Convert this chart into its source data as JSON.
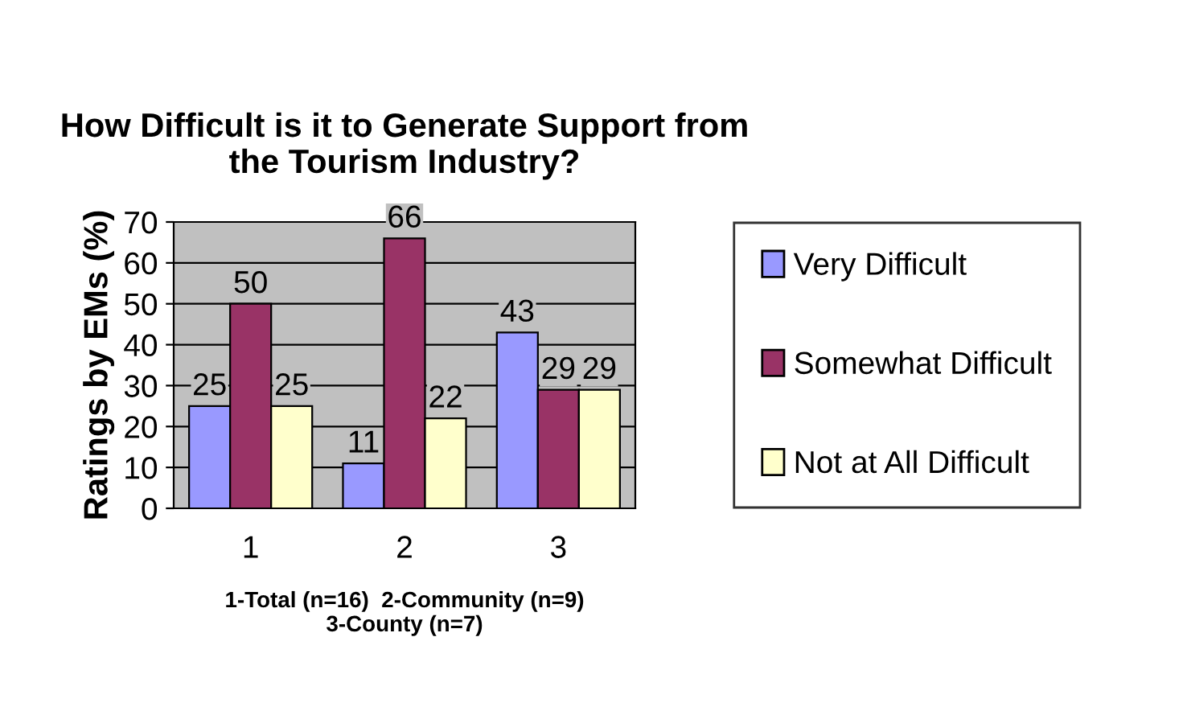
{
  "chart_data": {
    "type": "bar",
    "title": "How Difficult is it to Generate Support from\nthe Tourism Industry?",
    "ylabel": "Ratings by EMs (%)",
    "xlabel": "1-Total (n=16)  2-Community (n=9)\n3-County (n=7)",
    "categories": [
      "1",
      "2",
      "3"
    ],
    "series": [
      {
        "name": "Very Difficult",
        "color": "#9999ff",
        "values": [
          25,
          11,
          43
        ]
      },
      {
        "name": "Somewhat Difficult",
        "color": "#993366",
        "values": [
          50,
          66,
          29
        ]
      },
      {
        "name": "Not at All Difficult",
        "color": "#ffffcc",
        "values": [
          25,
          22,
          29
        ]
      }
    ],
    "ylim": [
      0,
      70
    ],
    "yticks": [
      0,
      10,
      20,
      30,
      40,
      50,
      60,
      70
    ],
    "grid": "y",
    "legend": "right",
    "data_labels": true
  }
}
